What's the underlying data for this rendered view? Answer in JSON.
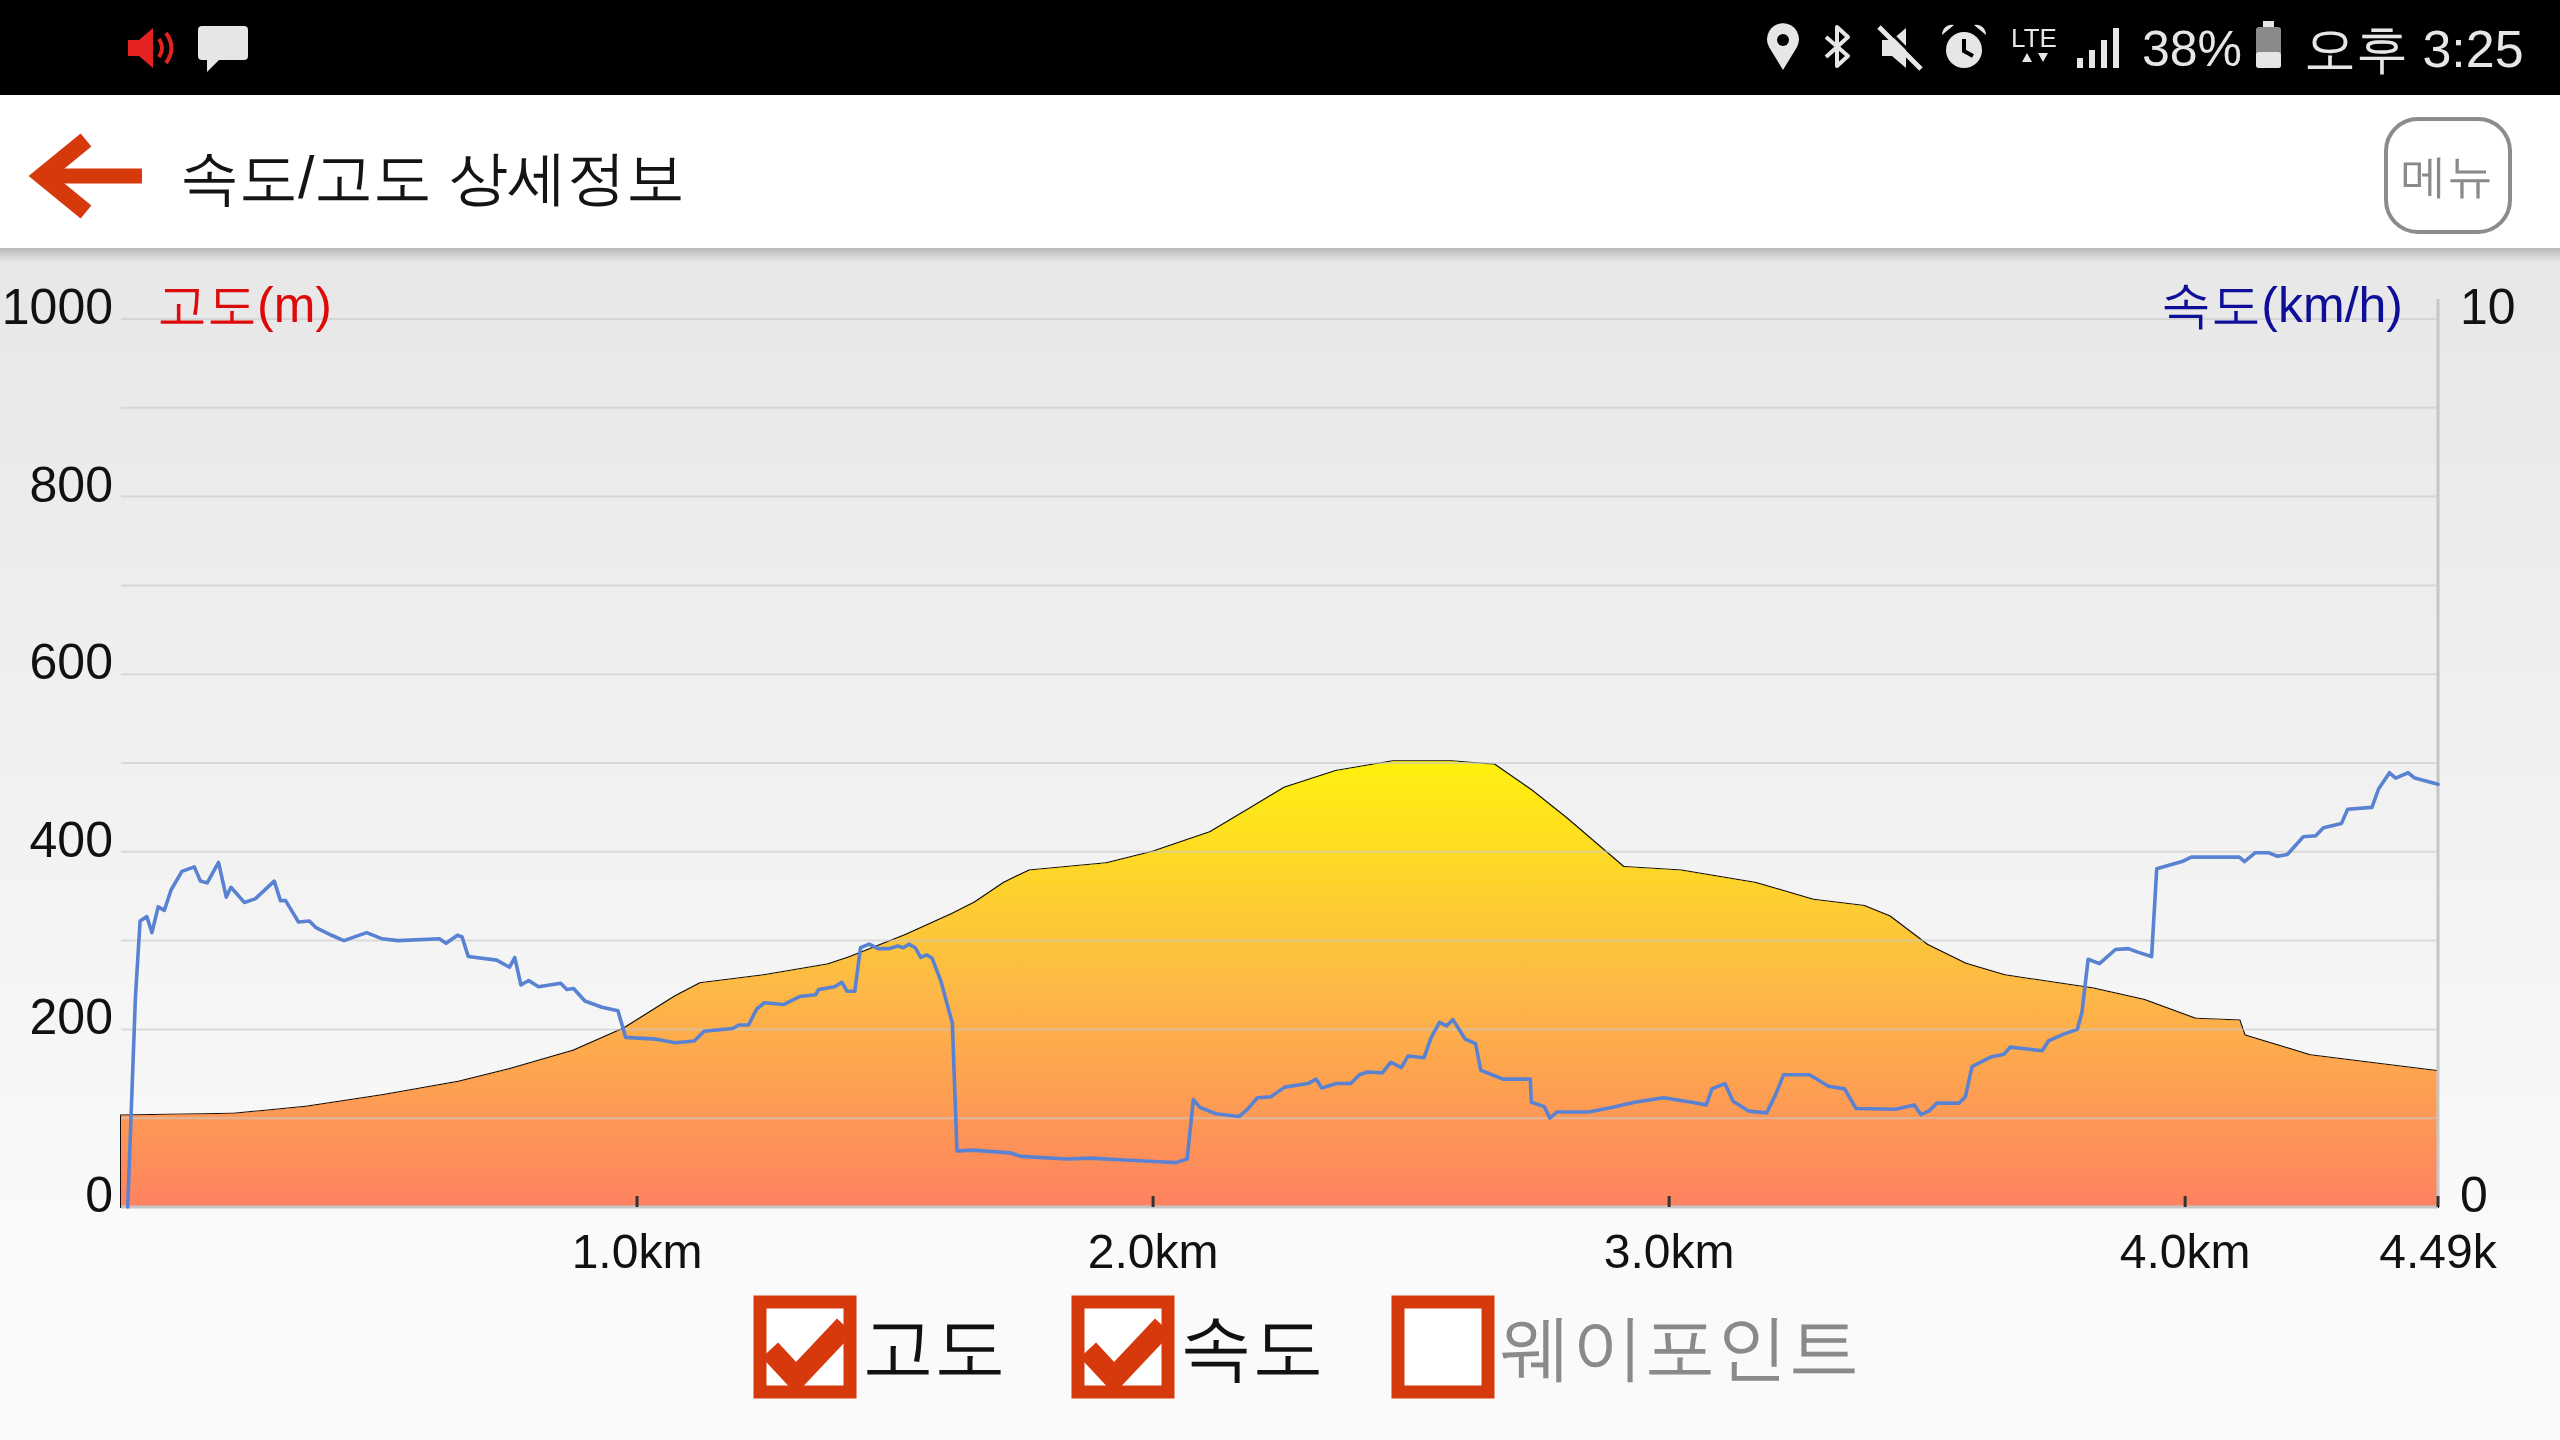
{
  "chart_data": {
    "type": "area",
    "title": "속도/고도 상세정보",
    "ylabel": "고도(m)",
    "y2label": "속도(km/h)",
    "annotations": [
      "메뉴",
      "고도",
      "속도",
      "웨이포인트",
      "LTE",
      "38%",
      "오후 3:25"
    ],
    "xlim": [
      0,
      4.49
    ],
    "xticks": [
      {
        "value": 1.0,
        "label": "1.0km"
      },
      {
        "value": 2.0,
        "label": "2.0km"
      },
      {
        "value": 3.0,
        "label": "3.0km"
      },
      {
        "value": 4.0,
        "label": "4.0km"
      },
      {
        "value": 4.49,
        "label": "4.49k"
      }
    ],
    "ylim": [
      0,
      1000
    ],
    "yticks": [
      0,
      {
        "value": 100,
        "label": null
      },
      200,
      {
        "value": 300,
        "label": null
      },
      400,
      {
        "value": 500,
        "label": null
      },
      600,
      {
        "value": 700,
        "label": null
      },
      800,
      {
        "value": 900,
        "label": null
      },
      1000
    ],
    "y2lim": [
      0,
      10
    ],
    "y2ticks": [
      0,
      10
    ],
    "grid": "y",
    "series": [
      {
        "color": "#fdba45",
        "x": [
          0,
          0.22,
          0.36,
          0.51,
          0.655,
          0.753,
          0.877,
          0.975,
          1.074,
          1.123,
          1.247,
          1.37,
          1.411,
          1.52,
          1.611,
          1.655,
          1.711,
          1.761,
          1.911,
          2.0,
          2.111,
          2.189,
          2.255,
          2.355,
          2.466,
          2.577,
          2.661,
          2.733,
          2.8,
          2.911,
          3.022,
          3.167,
          3.278,
          3.377,
          3.427,
          3.5,
          3.574,
          3.649,
          3.821,
          3.92,
          4.019,
          4.105,
          4.115,
          4.241,
          4.365,
          4.49
        ],
        "values": [
          103,
          105,
          113,
          126,
          141,
          155,
          176,
          201,
          237,
          252,
          261,
          273,
          281,
          306,
          330,
          343,
          365,
          379,
          387,
          400,
          422,
          449,
          472,
          491,
          502,
          502,
          498,
          469,
          438,
          383,
          379,
          365,
          346,
          339,
          327,
          295,
          274,
          261,
          246,
          233,
          212,
          210,
          193,
          171,
          162,
          153
        ]
      },
      {
        "type": "line",
        "axis": "y2",
        "color": "#5a82d2",
        "x": [
          0.013,
          0.028,
          0.037,
          0.05,
          0.06,
          0.072,
          0.084,
          0.097,
          0.118,
          0.142,
          0.154,
          0.167,
          0.189,
          0.204,
          0.213,
          0.239,
          0.26,
          0.297,
          0.309,
          0.319,
          0.344,
          0.365,
          0.377,
          0.408,
          0.432,
          0.476,
          0.506,
          0.537,
          0.617,
          0.63,
          0.652,
          0.661,
          0.673,
          0.728,
          0.753,
          0.763,
          0.775,
          0.79,
          0.809,
          0.852,
          0.864,
          0.877,
          0.899,
          0.932,
          0.963,
          0.978,
          1.037,
          1.074,
          1.111,
          1.13,
          1.185,
          1.198,
          1.216,
          1.232,
          1.247,
          1.284,
          1.315,
          1.346,
          1.352,
          1.383,
          1.397,
          1.407,
          1.422,
          1.433,
          1.45,
          1.467,
          1.489,
          1.505,
          1.516,
          1.527,
          1.539,
          1.55,
          1.561,
          1.572,
          1.589,
          1.611,
          1.62,
          1.65,
          1.722,
          1.744,
          1.833,
          1.878,
          1.944,
          2.011,
          2.044,
          2.066,
          2.078,
          2.091,
          2.122,
          2.167,
          2.183,
          2.202,
          2.228,
          2.255,
          2.3,
          2.316,
          2.327,
          2.355,
          2.383,
          2.4,
          2.416,
          2.444,
          2.461,
          2.481,
          2.494,
          2.525,
          2.539,
          2.555,
          2.569,
          2.581,
          2.605,
          2.625,
          2.635,
          2.678,
          2.731,
          2.733,
          2.758,
          2.769,
          2.783,
          2.844,
          2.889,
          2.933,
          2.989,
          3.044,
          3.072,
          3.083,
          3.108,
          3.124,
          3.154,
          3.189,
          3.206,
          3.222,
          3.272,
          3.309,
          3.34,
          3.362,
          3.439,
          3.475,
          3.488,
          3.503,
          3.519,
          3.562,
          3.574,
          3.587,
          3.624,
          3.649,
          3.661,
          3.723,
          3.735,
          3.766,
          3.791,
          3.8,
          3.812,
          3.834,
          3.865,
          3.89,
          3.908,
          3.935,
          3.945,
          3.994,
          4.012,
          4.105,
          4.115,
          4.136,
          4.161,
          4.179,
          4.198,
          4.229,
          4.253,
          4.268,
          4.303,
          4.315,
          4.362,
          4.375,
          4.396,
          4.408,
          4.432,
          4.445,
          4.49
        ],
        "values": [
          0,
          2.37,
          3.22,
          3.27,
          3.09,
          3.38,
          3.34,
          3.57,
          3.78,
          3.83,
          3.67,
          3.65,
          3.88,
          3.49,
          3.6,
          3.43,
          3.47,
          3.67,
          3.45,
          3.45,
          3.21,
          3.22,
          3.15,
          3.06,
          3.0,
          3.09,
          3.02,
          3.0,
          3.02,
          2.97,
          3.06,
          3.04,
          2.82,
          2.78,
          2.7,
          2.81,
          2.5,
          2.55,
          2.48,
          2.52,
          2.45,
          2.46,
          2.32,
          2.25,
          2.21,
          1.91,
          1.89,
          1.85,
          1.87,
          1.98,
          2.01,
          2.05,
          2.05,
          2.23,
          2.3,
          2.28,
          2.37,
          2.39,
          2.45,
          2.48,
          2.53,
          2.43,
          2.43,
          2.92,
          2.96,
          2.91,
          2.91,
          2.94,
          2.92,
          2.96,
          2.92,
          2.81,
          2.84,
          2.8,
          2.54,
          2.07,
          0.63,
          0.64,
          0.61,
          0.57,
          0.54,
          0.55,
          0.53,
          0.51,
          0.5,
          0.54,
          1.21,
          1.12,
          1.05,
          1.02,
          1.1,
          1.23,
          1.24,
          1.35,
          1.39,
          1.44,
          1.34,
          1.39,
          1.39,
          1.49,
          1.52,
          1.51,
          1.63,
          1.57,
          1.7,
          1.68,
          1.91,
          2.08,
          2.04,
          2.11,
          1.89,
          1.84,
          1.54,
          1.44,
          1.44,
          1.18,
          1.13,
          1.0,
          1.07,
          1.07,
          1.12,
          1.18,
          1.23,
          1.18,
          1.15,
          1.33,
          1.39,
          1.19,
          1.08,
          1.06,
          1.26,
          1.49,
          1.49,
          1.36,
          1.33,
          1.11,
          1.1,
          1.15,
          1.04,
          1.08,
          1.17,
          1.17,
          1.24,
          1.58,
          1.69,
          1.72,
          1.8,
          1.76,
          1.87,
          1.95,
          2.0,
          2.19,
          2.79,
          2.74,
          2.9,
          2.91,
          2.87,
          2.82,
          3.81,
          3.89,
          3.94,
          3.94,
          3.89,
          3.99,
          3.99,
          3.95,
          3.97,
          4.17,
          4.18,
          4.27,
          4.32,
          4.48,
          4.5,
          4.71,
          4.89,
          4.83,
          4.89,
          4.83,
          4.76
        ]
      }
    ]
  }
}
